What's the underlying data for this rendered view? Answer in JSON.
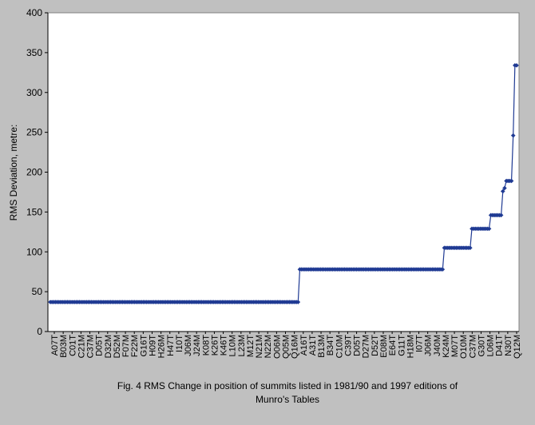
{
  "colors": {
    "background": "#c0c0c0",
    "plot_area": "#ffffff",
    "series": "#1f3a93"
  },
  "chart_data": {
    "type": "line",
    "xlabel": "",
    "ylabel": "RMS Deviation, metre:",
    "ylim": [
      0,
      400
    ],
    "y_ticks": [
      "0",
      "50",
      "100",
      "150",
      "200",
      "250",
      "300",
      "350",
      "400"
    ],
    "grid": false,
    "category_labels": [
      "A07T",
      "B03M",
      "C01T",
      "C21M",
      "C37M",
      "D05T",
      "D32M",
      "D52M",
      "F07M",
      "F22M",
      "G16T",
      "H09T",
      "H26M",
      "H47T",
      "I10T",
      "J06M",
      "J24M",
      "K08T",
      "K26T",
      "K46T",
      "L10M",
      "L23M",
      "M12T",
      "N21M",
      "N22M",
      "O06M",
      "Q05M",
      "Q16M",
      "A16T",
      "A31T",
      "B13M",
      "B34T",
      "C10M",
      "C39T",
      "D05T",
      "D27M",
      "D52T",
      "E08M",
      "E64T",
      "G11T",
      "H18M",
      "I07T",
      "J06M",
      "J40M",
      "K24M",
      "M07T",
      "O10M",
      "C37M",
      "G30T",
      "L06M",
      "D41T",
      "N30T",
      "Q12M"
    ],
    "point_count": 272,
    "step_changes": [
      {
        "from_index": 0,
        "to_index": 144,
        "value": 37
      },
      {
        "from_index": 145,
        "to_index": 228,
        "value": 78
      },
      {
        "from_index": 229,
        "to_index": 244,
        "value": 105
      },
      {
        "from_index": 245,
        "to_index": 255,
        "value": 129
      },
      {
        "from_index": 256,
        "to_index": 262,
        "value": 146
      },
      {
        "from_index": 263,
        "to_index": 263,
        "value": 176
      },
      {
        "from_index": 264,
        "to_index": 264,
        "value": 180
      },
      {
        "from_index": 265,
        "to_index": 266,
        "value": 189
      },
      {
        "from_index": 267,
        "to_index": 268,
        "value": 189
      },
      {
        "from_index": 269,
        "to_index": 269,
        "value": 246
      },
      {
        "from_index": 270,
        "to_index": 271,
        "value": 334
      }
    ]
  },
  "caption": {
    "line1": "Fig. 4    RMS Change in position of summits listed in 1981/90 and 1997 editions of",
    "line2": "Munro's Tables"
  }
}
